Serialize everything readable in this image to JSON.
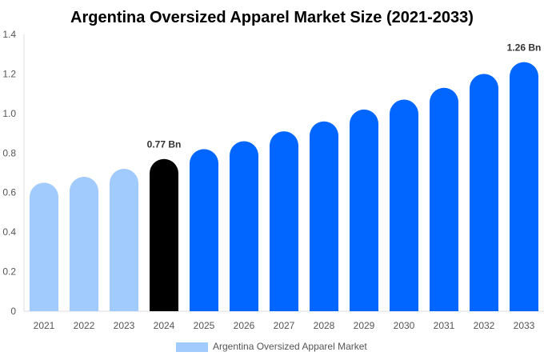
{
  "chart_data": {
    "type": "bar",
    "title": "Argentina Oversized Apparel Market Size (2021-2033)",
    "xlabel": "",
    "ylabel": "",
    "categories": [
      "2021",
      "2022",
      "2023",
      "2024",
      "2025",
      "2026",
      "2027",
      "2028",
      "2029",
      "2030",
      "2031",
      "2032",
      "2033"
    ],
    "series": [
      {
        "name": "Argentina Oversized Apparel Market",
        "values": [
          0.65,
          0.68,
          0.72,
          0.77,
          0.82,
          0.86,
          0.91,
          0.96,
          1.02,
          1.07,
          1.13,
          1.2,
          1.26
        ]
      }
    ],
    "ylim": [
      0,
      1.4
    ],
    "yticks": [
      "0",
      "0.2",
      "0.4",
      "0.6",
      "0.8",
      "1.0",
      "1.2",
      "1.4"
    ],
    "annotations": [
      {
        "category": "2024",
        "label": "0.77 Bn"
      },
      {
        "category": "2033",
        "label": "1.26 Bn"
      }
    ],
    "grid": false,
    "legend_position": "bottom",
    "colors": {
      "historical": "#a0cbfc",
      "current": "#000000",
      "forecast": "#0066ff",
      "legend": "#a0cbfc"
    }
  }
}
